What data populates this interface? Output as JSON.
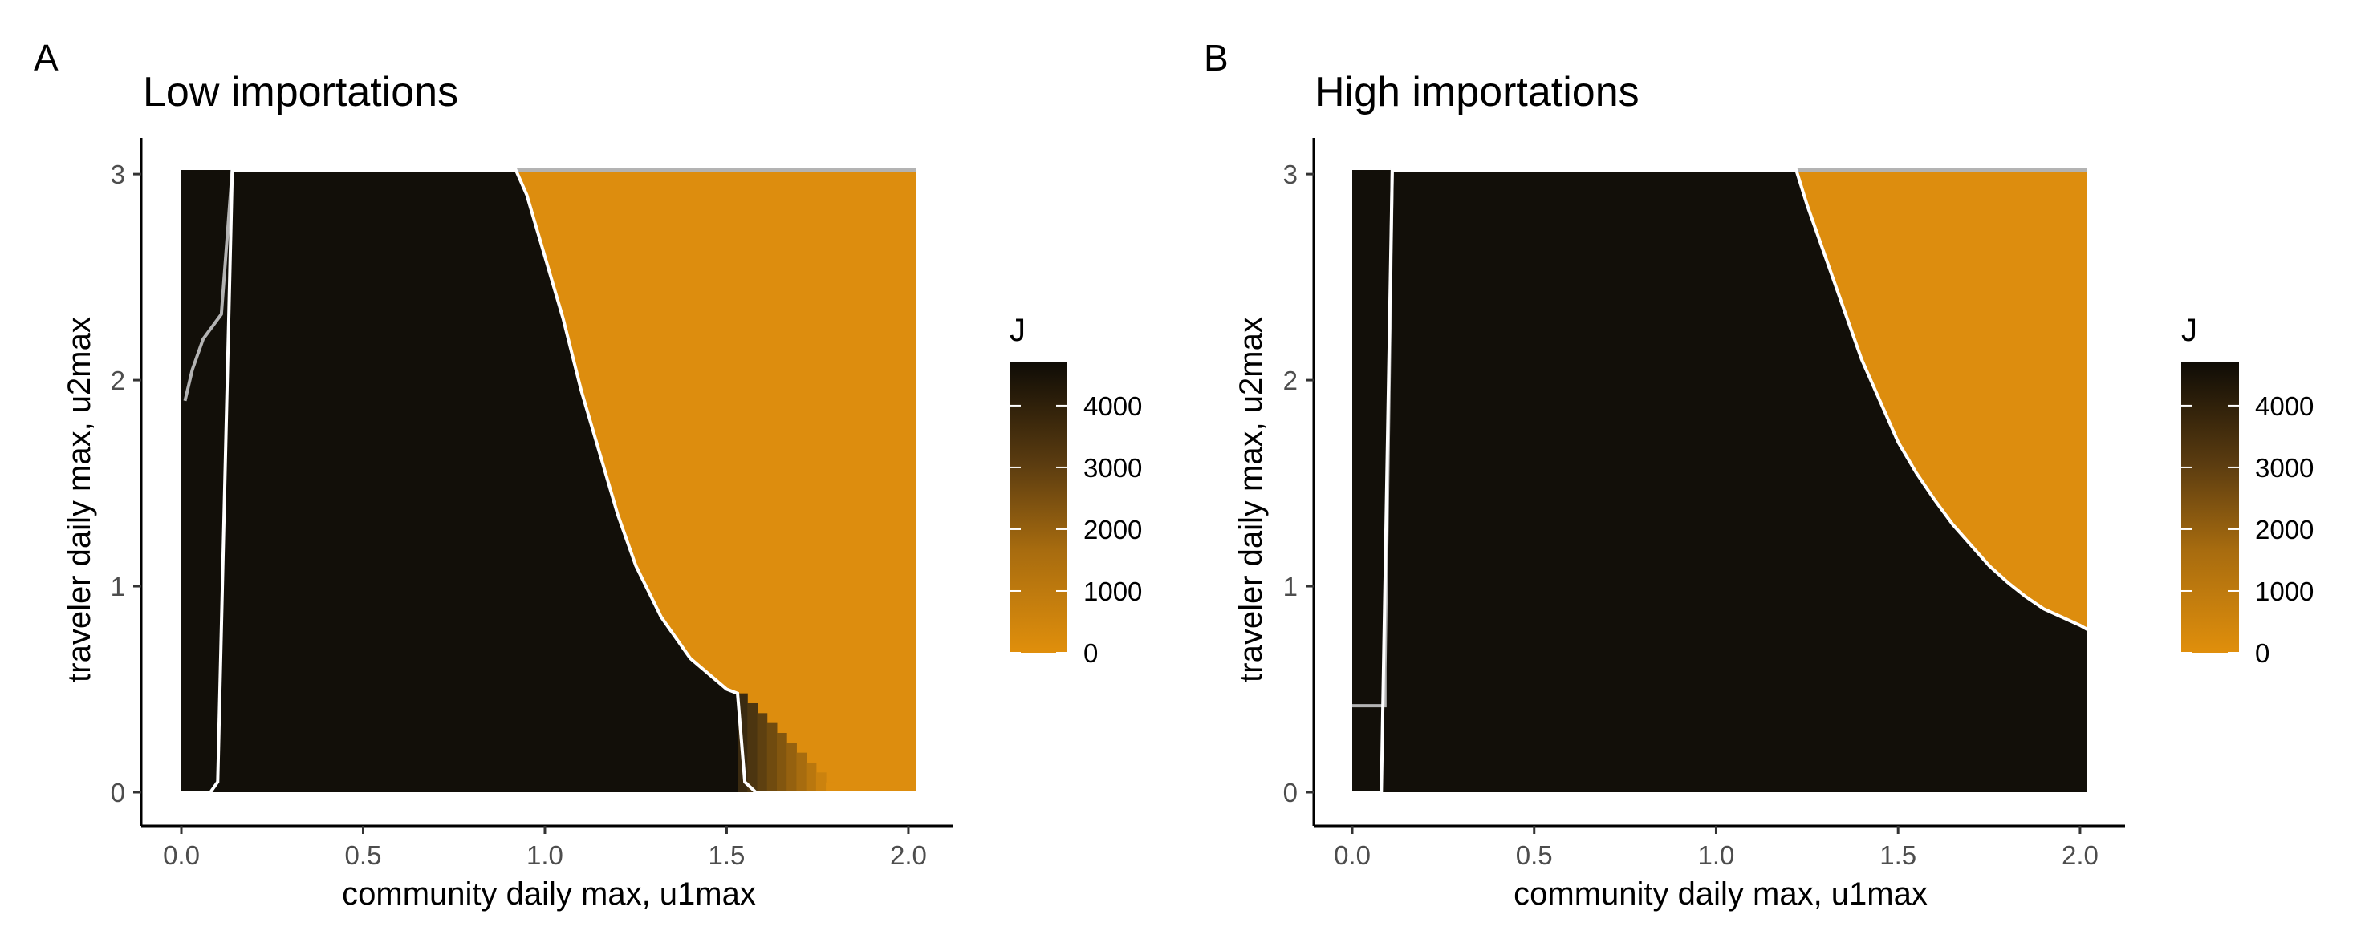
{
  "chart_data": [
    {
      "type": "heatmap",
      "panel_tag": "A",
      "title": "Low importations",
      "xlabel": "community daily max, u1max",
      "ylabel": "traveler daily max, u2max",
      "xlim": [
        0,
        2.02
      ],
      "ylim": [
        0,
        3.02
      ],
      "x_ticks": [
        0.0,
        0.5,
        1.0,
        1.5,
        2.0
      ],
      "x_tick_labels": [
        "0.0",
        "0.5",
        "1.0",
        "1.5",
        "2.0"
      ],
      "y_ticks": [
        0,
        1,
        2,
        3
      ],
      "y_tick_labels": [
        "0",
        "1",
        "2",
        "3"
      ],
      "fill_variable": "J",
      "high_region_J": 4600,
      "low_region_J": 150,
      "boundary": [
        [
          0.92,
          3.02
        ],
        [
          0.95,
          2.9
        ],
        [
          1.0,
          2.6
        ],
        [
          1.05,
          2.3
        ],
        [
          1.1,
          1.95
        ],
        [
          1.15,
          1.65
        ],
        [
          1.2,
          1.35
        ],
        [
          1.25,
          1.1
        ],
        [
          1.32,
          0.85
        ],
        [
          1.4,
          0.65
        ],
        [
          1.5,
          0.5
        ],
        [
          1.53,
          0.48
        ]
      ],
      "transition_zone": {
        "x_start": 1.53,
        "x_end": 1.8,
        "y_top": 0.48
      },
      "white_contour": [
        [
          0.0,
          0.0
        ],
        [
          0.08,
          0.0
        ],
        [
          0.1,
          0.05
        ],
        [
          0.14,
          3.02
        ],
        [
          0.92,
          3.02
        ],
        [
          0.95,
          2.9
        ],
        [
          1.0,
          2.6
        ],
        [
          1.05,
          2.3
        ],
        [
          1.1,
          1.95
        ],
        [
          1.15,
          1.65
        ],
        [
          1.2,
          1.35
        ],
        [
          1.25,
          1.1
        ],
        [
          1.32,
          0.85
        ],
        [
          1.4,
          0.65
        ],
        [
          1.5,
          0.5
        ],
        [
          1.53,
          0.48
        ],
        [
          1.55,
          0.05
        ],
        [
          1.58,
          0.0
        ],
        [
          2.02,
          0.0
        ]
      ],
      "grey_contour": [
        [
          0.01,
          1.9
        ],
        [
          0.03,
          2.05
        ],
        [
          0.06,
          2.2
        ],
        [
          0.11,
          2.32
        ],
        [
          0.14,
          3.02
        ],
        [
          2.02,
          3.02
        ]
      ]
    },
    {
      "type": "heatmap",
      "panel_tag": "B",
      "title": "High importations",
      "xlabel": "community daily max, u1max",
      "ylabel": "traveler daily max, u2max",
      "xlim": [
        0,
        2.02
      ],
      "ylim": [
        0,
        3.02
      ],
      "x_ticks": [
        0.0,
        0.5,
        1.0,
        1.5,
        2.0
      ],
      "x_tick_labels": [
        "0.0",
        "0.5",
        "1.0",
        "1.5",
        "2.0"
      ],
      "y_ticks": [
        0,
        1,
        2,
        3
      ],
      "y_tick_labels": [
        "0",
        "1",
        "2",
        "3"
      ],
      "fill_variable": "J",
      "high_region_J": 4600,
      "low_region_J": 150,
      "boundary": [
        [
          1.22,
          3.02
        ],
        [
          1.25,
          2.85
        ],
        [
          1.3,
          2.6
        ],
        [
          1.35,
          2.35
        ],
        [
          1.4,
          2.1
        ],
        [
          1.45,
          1.9
        ],
        [
          1.5,
          1.7
        ],
        [
          1.55,
          1.55
        ],
        [
          1.6,
          1.42
        ],
        [
          1.65,
          1.3
        ],
        [
          1.7,
          1.2
        ],
        [
          1.75,
          1.1
        ],
        [
          1.8,
          1.02
        ],
        [
          1.85,
          0.95
        ],
        [
          1.9,
          0.89
        ],
        [
          1.95,
          0.85
        ],
        [
          2.0,
          0.81
        ],
        [
          2.02,
          0.79
        ]
      ],
      "white_contour": [
        [
          0.0,
          0.0
        ],
        [
          0.08,
          0.0
        ],
        [
          0.11,
          3.02
        ],
        [
          1.22,
          3.02
        ],
        [
          1.25,
          2.85
        ],
        [
          1.3,
          2.6
        ],
        [
          1.35,
          2.35
        ],
        [
          1.4,
          2.1
        ],
        [
          1.45,
          1.9
        ],
        [
          1.5,
          1.7
        ],
        [
          1.55,
          1.55
        ],
        [
          1.6,
          1.42
        ],
        [
          1.65,
          1.3
        ],
        [
          1.7,
          1.2
        ],
        [
          1.75,
          1.1
        ],
        [
          1.8,
          1.02
        ],
        [
          1.85,
          0.95
        ],
        [
          1.9,
          0.89
        ],
        [
          1.95,
          0.85
        ],
        [
          2.0,
          0.81
        ],
        [
          2.02,
          0.79
        ]
      ],
      "grey_contour": [
        [
          0.0,
          0.42
        ],
        [
          0.09,
          0.42
        ],
        [
          0.09,
          0.6
        ],
        [
          0.11,
          3.02
        ],
        [
          2.02,
          3.02
        ]
      ]
    }
  ],
  "legend": {
    "title": "J",
    "ticks": [
      0,
      1000,
      2000,
      3000,
      4000
    ],
    "tick_labels": [
      "0",
      "1000",
      "2000",
      "3000",
      "4000"
    ],
    "range": [
      0,
      4700
    ],
    "color_low": "#e08f0c",
    "color_high": "#0f0c06"
  },
  "colors": {
    "region_dark": "#120f09",
    "region_orange": "#dd8d0e",
    "contour_white": "#ffffff",
    "contour_grey": "#b3b3b3"
  }
}
